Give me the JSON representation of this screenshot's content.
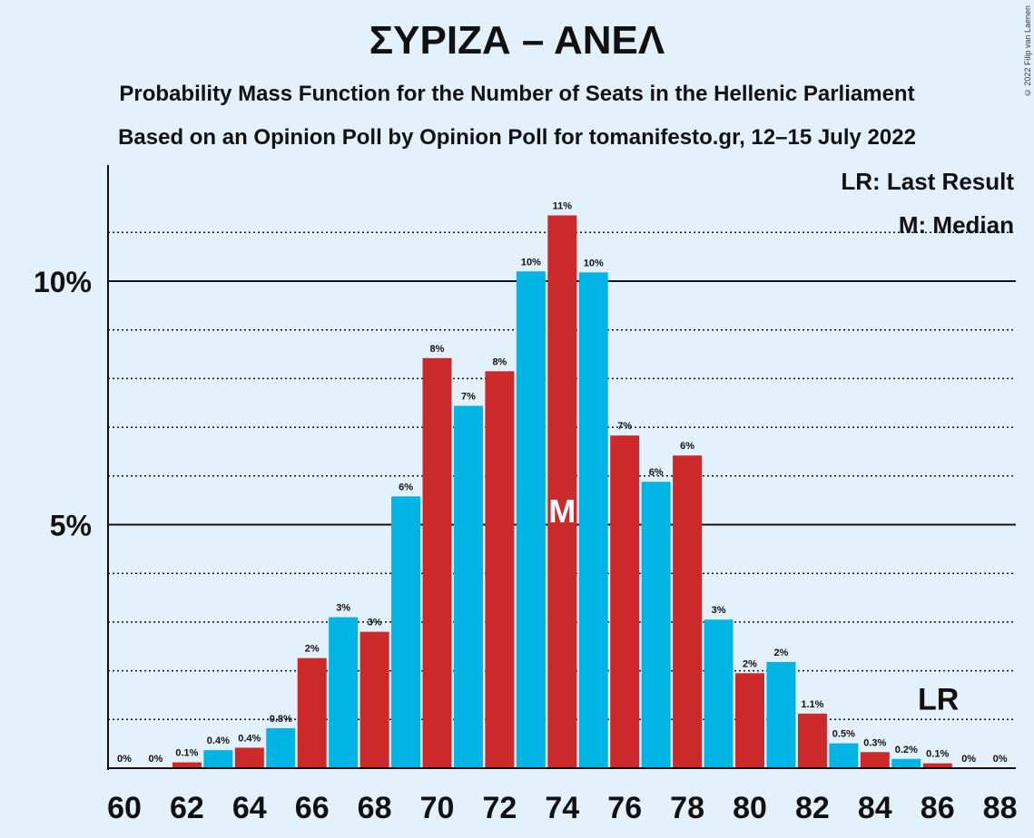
{
  "title": "ΣΥΡΙΖΑ – ΑΝΕΛ",
  "subtitle1": "Probability Mass Function for the Number of Seats in the Hellenic Parliament",
  "subtitle2": "Based on an Opinion Poll by Opinion Poll for tomanifesto.gr, 12–15 July 2022",
  "copyright": "© 2022 Filip van Laenen",
  "legend": {
    "lr": "LR: Last Result",
    "m": "M: Median"
  },
  "markers": {
    "median_label": "M",
    "median_seat": 74,
    "last_result_label": "LR",
    "last_result_seat": 86
  },
  "colors": {
    "red": "#cc2a2a",
    "blue": "#00b4e6",
    "background": "#e3f1fd"
  },
  "chart_data": {
    "type": "bar",
    "x": [
      60,
      61,
      62,
      63,
      64,
      65,
      66,
      67,
      68,
      69,
      70,
      71,
      72,
      73,
      74,
      75,
      76,
      77,
      78,
      79,
      80,
      81,
      82,
      83,
      84,
      85,
      86,
      87,
      88
    ],
    "values": [
      0,
      0,
      0.12,
      0.37,
      0.42,
      0.82,
      2.26,
      3.1,
      2.8,
      5.58,
      8.42,
      7.44,
      8.15,
      10.2,
      11.35,
      10.18,
      6.83,
      5.88,
      6.42,
      3.05,
      1.95,
      2.18,
      1.12,
      0.51,
      0.33,
      0.19,
      0.1,
      0,
      0
    ],
    "labels": [
      "0%",
      "0%",
      "0.1%",
      "0.4%",
      "0.4%",
      "0.8%",
      "2%",
      "3%",
      "3%",
      "6%",
      "8%",
      "7%",
      "8%",
      "10%",
      "11%",
      "10%",
      "7%",
      "6%",
      "6%",
      "3%",
      "2%",
      "2%",
      "1.1%",
      "0.5%",
      "0.3%",
      "0.2%",
      "0.1%",
      "0%",
      "0%"
    ],
    "xticks": [
      "60",
      "62",
      "64",
      "66",
      "68",
      "70",
      "72",
      "74",
      "76",
      "78",
      "80",
      "82",
      "84",
      "86",
      "88"
    ],
    "yticks": [
      {
        "value": 5,
        "label": "5%"
      },
      {
        "value": 10,
        "label": "10%"
      }
    ],
    "ylim": [
      0,
      12.4
    ],
    "dotted_gridlines": [
      1,
      2,
      3,
      4,
      6,
      7,
      8,
      9,
      11
    ],
    "solid_gridlines": [
      5,
      10
    ]
  }
}
